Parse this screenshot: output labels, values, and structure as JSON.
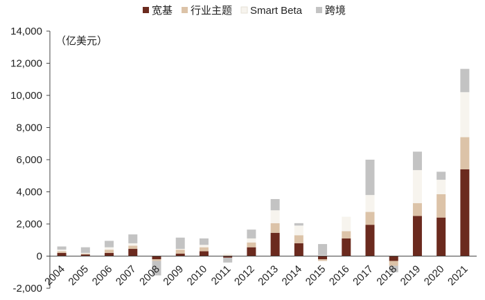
{
  "chart_data": {
    "type": "bar",
    "stacked": true,
    "unit_label": "（亿美元）",
    "categories": [
      "2004",
      "2005",
      "2006",
      "2007",
      "2008",
      "2009",
      "2010",
      "2011",
      "2012",
      "2013",
      "2014",
      "2015",
      "2016",
      "2017",
      "2018",
      "2019",
      "2020",
      "2021"
    ],
    "ylim": [
      -2000,
      14000
    ],
    "yticks": [
      -2000,
      0,
      2000,
      4000,
      6000,
      8000,
      10000,
      12000,
      14000
    ],
    "ytick_labels": [
      "-2,000",
      "0",
      "2,000",
      "4,000",
      "6,000",
      "8,000",
      "10,000",
      "12,000",
      "14,000"
    ],
    "grid": false,
    "legend_position": "top",
    "series": [
      {
        "name": "宽基",
        "color": "#6b2a1e",
        "values": [
          200,
          100,
          200,
          450,
          -200,
          150,
          300,
          -100,
          550,
          1450,
          800,
          -200,
          1100,
          1950,
          -300,
          2500,
          2400,
          5400
        ]
      },
      {
        "name": "行业主题",
        "color": "#dcc3a8",
        "values": [
          100,
          50,
          200,
          200,
          -100,
          250,
          250,
          50,
          300,
          600,
          500,
          -100,
          450,
          800,
          -300,
          800,
          1450,
          2000
        ]
      },
      {
        "name": "Smart Beta",
        "color": "#f7f4ee",
        "values": [
          100,
          50,
          150,
          150,
          50,
          50,
          150,
          100,
          250,
          800,
          600,
          50,
          900,
          1050,
          50,
          2050,
          900,
          2800
        ]
      },
      {
        "name": "跨境",
        "color": "#c3c3c3",
        "values": [
          200,
          350,
          400,
          550,
          -900,
          700,
          400,
          -300,
          550,
          700,
          150,
          700,
          0,
          2200,
          -400,
          1150,
          500,
          1450
        ]
      }
    ]
  }
}
